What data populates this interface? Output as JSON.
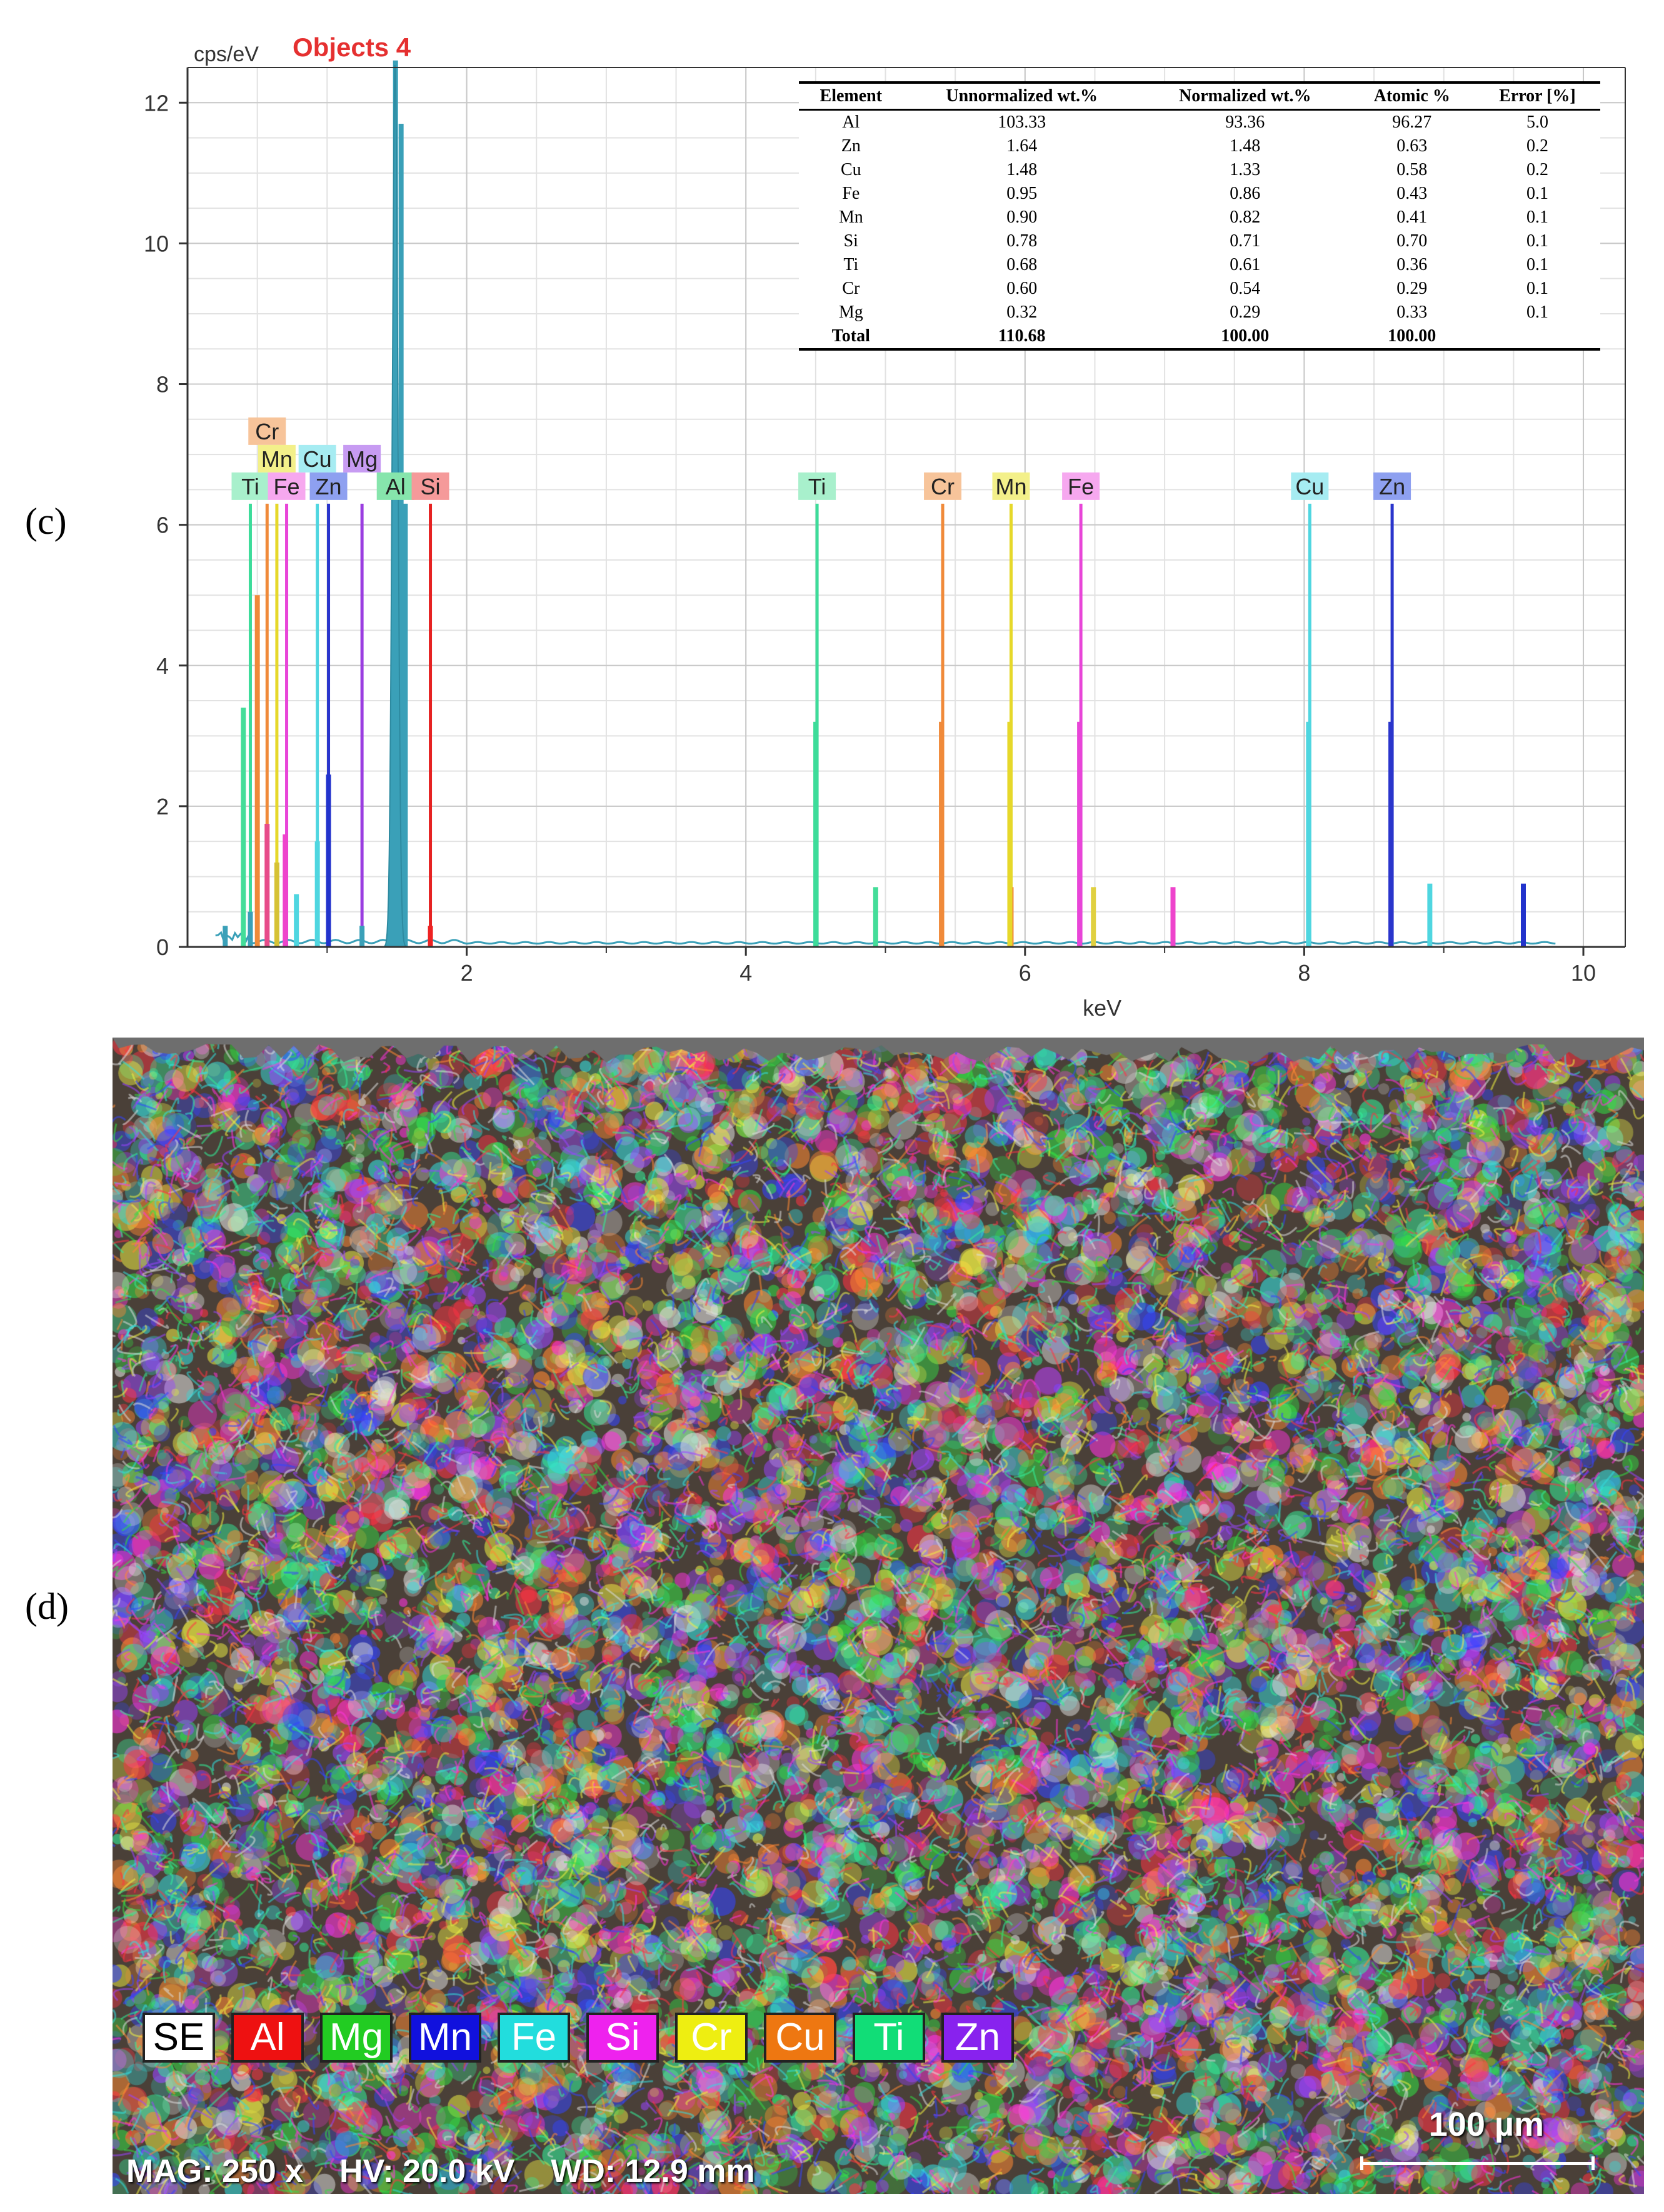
{
  "panels": {
    "c_label": "(c)",
    "d_label": "(d)"
  },
  "chart_data": {
    "type": "bar",
    "title": "Objects 4",
    "ylabel": "cps/eV",
    "xlabel": "keV",
    "xlim": [
      0,
      10.3
    ],
    "ylim": [
      0,
      12.5
    ],
    "xticks": [
      "2",
      "4",
      "6",
      "8",
      "10"
    ],
    "yticks": [
      "0",
      "2",
      "4",
      "6",
      "8",
      "10",
      "12"
    ],
    "grid": true,
    "spectrum_peaks": [
      {
        "x": 0.27,
        "y": 0.3,
        "color": "#3aa0b8"
      },
      {
        "x": 0.45,
        "y": 0.5,
        "color": "#3aa0b8"
      },
      {
        "x": 0.4,
        "y": 3.4,
        "color": "#44dd99"
      },
      {
        "x": 0.5,
        "y": 5.0,
        "color": "#f08a3a"
      },
      {
        "x": 0.57,
        "y": 1.75,
        "color": "#e74c8a"
      },
      {
        "x": 0.64,
        "y": 1.2,
        "color": "#d6c234"
      },
      {
        "x": 0.7,
        "y": 1.6,
        "color": "#ee44cc"
      },
      {
        "x": 0.78,
        "y": 0.75,
        "color": "#4fd6e0"
      },
      {
        "x": 0.93,
        "y": 1.5,
        "color": "#4fd6e0"
      },
      {
        "x": 1.01,
        "y": 2.45,
        "color": "#2233cc"
      },
      {
        "x": 1.25,
        "y": 0.3,
        "color": "#3aa0b8"
      },
      {
        "x": 1.49,
        "y": 12.6,
        "color": "#3aa0b8"
      },
      {
        "x": 1.53,
        "y": 11.7,
        "color": "#3aa0b8"
      },
      {
        "x": 1.56,
        "y": 6.3,
        "color": "#3aa0b8"
      },
      {
        "x": 1.74,
        "y": 0.3,
        "color": "#ee2222"
      },
      {
        "x": 4.93,
        "y": 0.85,
        "color": "#44dd99"
      },
      {
        "x": 5.9,
        "y": 0.85,
        "color": "#f08a3a"
      },
      {
        "x": 6.49,
        "y": 0.85,
        "color": "#e0d040"
      },
      {
        "x": 7.06,
        "y": 0.85,
        "color": "#ee44cc"
      },
      {
        "x": 8.9,
        "y": 0.9,
        "color": "#4fd6e0"
      },
      {
        "x": 9.57,
        "y": 0.9,
        "color": "#2233cc"
      }
    ],
    "element_markers": [
      {
        "label": "Ti",
        "x": 0.45,
        "height": 6.3,
        "color": "#3ddc9a",
        "bg": "#a8f0cc",
        "row": 0
      },
      {
        "label": "Cr",
        "x": 0.57,
        "height": 6.3,
        "color": "#f08a3a",
        "bg": "#f7c49a",
        "row": 2
      },
      {
        "label": "Mn",
        "x": 0.64,
        "height": 6.3,
        "color": "#e6d82a",
        "bg": "#f3f08a",
        "row": 1
      },
      {
        "label": "Fe",
        "x": 0.71,
        "height": 6.3,
        "color": "#e845d8",
        "bg": "#f6a8ef",
        "row": 0
      },
      {
        "label": "Cu",
        "x": 0.93,
        "height": 6.3,
        "color": "#4fd6e0",
        "bg": "#a6ecf2",
        "row": 1
      },
      {
        "label": "Zn",
        "x": 1.01,
        "height": 6.3,
        "color": "#2a35cc",
        "bg": "#8ea0f0",
        "row": 0
      },
      {
        "label": "Mg",
        "x": 1.25,
        "height": 6.3,
        "color": "#9a3de0",
        "bg": "#c79bf2",
        "row": 1
      },
      {
        "label": "Al",
        "x": 1.49,
        "height": 6.3,
        "color": "#27b86c",
        "bg": "#86e5ac",
        "row": 0
      },
      {
        "label": "Si",
        "x": 1.74,
        "height": 6.3,
        "color": "#e62222",
        "bg": "#f59a9a",
        "row": 0
      },
      {
        "label": "Ti",
        "x": 4.51,
        "height": 6.3,
        "color": "#3ddc9a",
        "bg": "#a8f0cc",
        "row": 0
      },
      {
        "label": "Cr",
        "x": 5.41,
        "height": 6.3,
        "color": "#f08a3a",
        "bg": "#f7c49a",
        "row": 0
      },
      {
        "label": "Mn",
        "x": 5.9,
        "height": 6.3,
        "color": "#e6d82a",
        "bg": "#f3f08a",
        "row": 0
      },
      {
        "label": "Fe",
        "x": 6.4,
        "height": 6.3,
        "color": "#e845d8",
        "bg": "#f6a8ef",
        "row": 0
      },
      {
        "label": "Cu",
        "x": 8.04,
        "height": 6.3,
        "color": "#4fd6e0",
        "bg": "#a6ecf2",
        "row": 0
      },
      {
        "label": "Zn",
        "x": 8.63,
        "height": 6.3,
        "color": "#2a35cc",
        "bg": "#8ea0f0",
        "row": 0
      }
    ],
    "table": {
      "columns": [
        "Element",
        "Unnormalized wt.%",
        "Normalized wt.%",
        "Atomic %",
        "Error [%]"
      ],
      "rows": [
        [
          "Al",
          "103.33",
          "93.36",
          "96.27",
          "5.0"
        ],
        [
          "Zn",
          "1.64",
          "1.48",
          "0.63",
          "0.2"
        ],
        [
          "Cu",
          "1.48",
          "1.33",
          "0.58",
          "0.2"
        ],
        [
          "Fe",
          "0.95",
          "0.86",
          "0.43",
          "0.1"
        ],
        [
          "Mn",
          "0.90",
          "0.82",
          "0.41",
          "0.1"
        ],
        [
          "Si",
          "0.78",
          "0.71",
          "0.70",
          "0.1"
        ],
        [
          "Ti",
          "0.68",
          "0.61",
          "0.36",
          "0.1"
        ],
        [
          "Cr",
          "0.60",
          "0.54",
          "0.29",
          "0.1"
        ],
        [
          "Mg",
          "0.32",
          "0.29",
          "0.33",
          "0.1"
        ]
      ],
      "total": [
        "Total",
        "110.68",
        "100.00",
        "100.00",
        ""
      ]
    }
  },
  "map": {
    "legend": [
      {
        "label": "SE",
        "bg": "#ffffff",
        "fg": "#000000"
      },
      {
        "label": "Al",
        "bg": "#ee1111",
        "fg": "#ffffff"
      },
      {
        "label": "Mg",
        "bg": "#22cc22",
        "fg": "#ffffff"
      },
      {
        "label": "Mn",
        "bg": "#1111dd",
        "fg": "#ffffff"
      },
      {
        "label": "Fe",
        "bg": "#22dddd",
        "fg": "#ffffff"
      },
      {
        "label": "Si",
        "bg": "#ee22ee",
        "fg": "#ffffff"
      },
      {
        "label": "Cr",
        "bg": "#eeee11",
        "fg": "#ffffff"
      },
      {
        "label": "Cu",
        "bg": "#ee7711",
        "fg": "#ffffff"
      },
      {
        "label": "Ti",
        "bg": "#11dd77",
        "fg": "#ffffff"
      },
      {
        "label": "Zn",
        "bg": "#8822ee",
        "fg": "#ffffff"
      }
    ],
    "mag": "MAG: 250 x",
    "hv": "HV: 20.0 kV",
    "wd": "WD: 12.9 mm",
    "scalebar": "100 µm"
  }
}
